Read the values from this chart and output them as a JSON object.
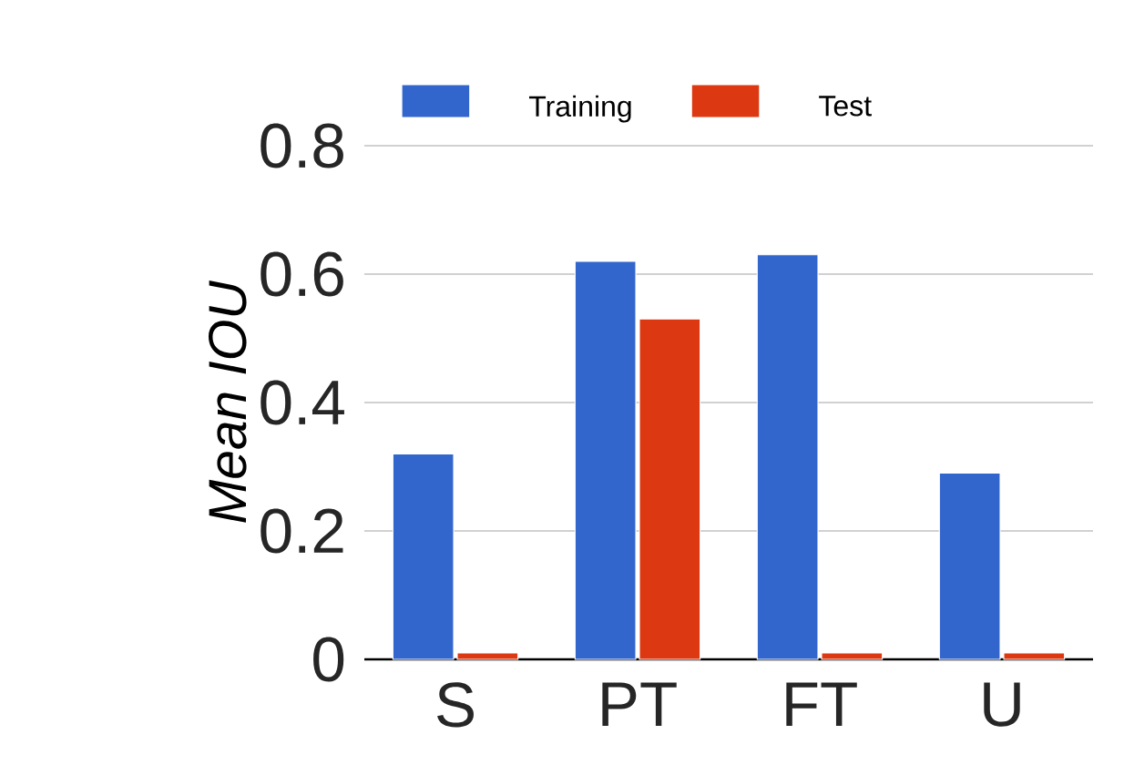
{
  "chart_data": {
    "type": "bar",
    "ylabel": "Mean IOU",
    "categories": [
      "S",
      "PT",
      "FT",
      "U"
    ],
    "series": [
      {
        "name": "Training",
        "color": "#3366cc",
        "values": [
          0.32,
          0.62,
          0.63,
          0.29
        ]
      },
      {
        "name": "Test",
        "color": "#dc3912",
        "values": [
          0.01,
          0.53,
          0.01,
          0.01
        ]
      }
    ],
    "ylim": [
      0,
      0.8
    ],
    "yticks": [
      0,
      0.2,
      0.4,
      0.6,
      0.8
    ],
    "grid": "y",
    "legend": "top"
  }
}
